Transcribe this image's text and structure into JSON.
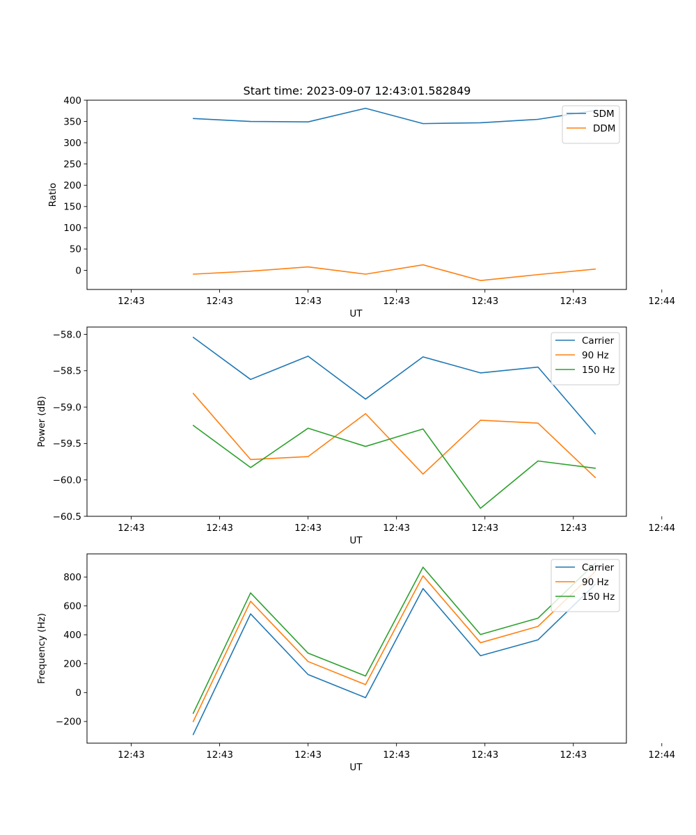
{
  "figure_title": "Start time: 2023-09-07 12:43:01.582849",
  "colors": {
    "blue": "#1f77b4",
    "orange": "#ff7f0e",
    "green": "#2ca02c"
  },
  "chart_data": [
    {
      "type": "line",
      "title": "Start time: 2023-09-07 12:43:01.582849",
      "xlabel": "UT",
      "ylabel": "Ratio",
      "x": [
        0.7,
        1.35,
        2.0,
        2.65,
        3.3,
        3.95,
        4.6,
        5.25
      ],
      "xlim": [
        -0.5,
        5.6
      ],
      "xticks": [
        0,
        1,
        2,
        3,
        4,
        5,
        6
      ],
      "xtick_labels": [
        "12:43",
        "12:43",
        "12:43",
        "12:43",
        "12:43",
        "12:43",
        "12:44"
      ],
      "ylim": [
        -45,
        400
      ],
      "yticks": [
        0,
        50,
        100,
        150,
        200,
        250,
        300,
        350,
        400
      ],
      "ytick_labels": [
        "0",
        "50",
        "100",
        "150",
        "200",
        "250",
        "300",
        "350",
        "400"
      ],
      "legend_position": "top-right",
      "series": [
        {
          "name": "SDM",
          "color": "#1f77b4",
          "values": [
            357,
            350,
            349,
            381,
            345,
            347,
            355,
            376
          ]
        },
        {
          "name": "DDM",
          "color": "#ff7f0e",
          "values": [
            -9,
            -2,
            8,
            -9,
            13,
            -24,
            -10,
            3
          ]
        }
      ]
    },
    {
      "type": "line",
      "xlabel": "UT",
      "ylabel": "Power (dB)",
      "x": [
        0.7,
        1.35,
        2.0,
        2.65,
        3.3,
        3.95,
        4.6,
        5.25
      ],
      "xlim": [
        -0.5,
        5.6
      ],
      "xticks": [
        0,
        1,
        2,
        3,
        4,
        5,
        6
      ],
      "xtick_labels": [
        "12:43",
        "12:43",
        "12:43",
        "12:43",
        "12:43",
        "12:43",
        "12:44"
      ],
      "ylim": [
        -60.5,
        -57.9
      ],
      "yticks": [
        -60.5,
        -60.0,
        -59.5,
        -59.0,
        -58.5,
        -58.0
      ],
      "ytick_labels": [
        "−60.5",
        "−60.0",
        "−59.5",
        "−59.0",
        "−58.5",
        "−58.0"
      ],
      "legend_position": "top-right",
      "series": [
        {
          "name": "Carrier",
          "color": "#1f77b4",
          "values": [
            -58.04,
            -58.62,
            -58.3,
            -58.89,
            -58.31,
            -58.53,
            -58.45,
            -59.37
          ]
        },
        {
          "name": "90 Hz",
          "color": "#ff7f0e",
          "values": [
            -58.81,
            -59.72,
            -59.68,
            -59.09,
            -59.92,
            -59.18,
            -59.22,
            -59.97
          ]
        },
        {
          "name": "150 Hz",
          "color": "#2ca02c",
          "values": [
            -59.25,
            -59.83,
            -59.29,
            -59.54,
            -59.3,
            -60.39,
            -59.74,
            -59.84
          ]
        }
      ]
    },
    {
      "type": "line",
      "xlabel": "UT",
      "ylabel": "Frequency (Hz)",
      "x": [
        0.7,
        1.35,
        2.0,
        2.65,
        3.3,
        3.95,
        4.6,
        5.25
      ],
      "xlim": [
        -0.5,
        5.6
      ],
      "xticks": [
        0,
        1,
        2,
        3,
        4,
        5,
        6
      ],
      "xtick_labels": [
        "12:43",
        "12:43",
        "12:43",
        "12:43",
        "12:43",
        "12:43",
        "12:44"
      ],
      "ylim": [
        -350,
        960
      ],
      "yticks": [
        -200,
        0,
        200,
        400,
        600,
        800
      ],
      "ytick_labels": [
        "−200",
        "0",
        "200",
        "400",
        "600",
        "800"
      ],
      "legend_position": "top-right",
      "series": [
        {
          "name": "Carrier",
          "color": "#1f77b4",
          "values": [
            -292,
            545,
            125,
            -35,
            720,
            255,
            365,
            750
          ]
        },
        {
          "name": "90 Hz",
          "color": "#ff7f0e",
          "values": [
            -202,
            632,
            215,
            55,
            808,
            345,
            458,
            840
          ]
        },
        {
          "name": "150 Hz",
          "color": "#2ca02c",
          "values": [
            -145,
            690,
            273,
            115,
            868,
            402,
            515,
            897
          ]
        }
      ]
    }
  ]
}
